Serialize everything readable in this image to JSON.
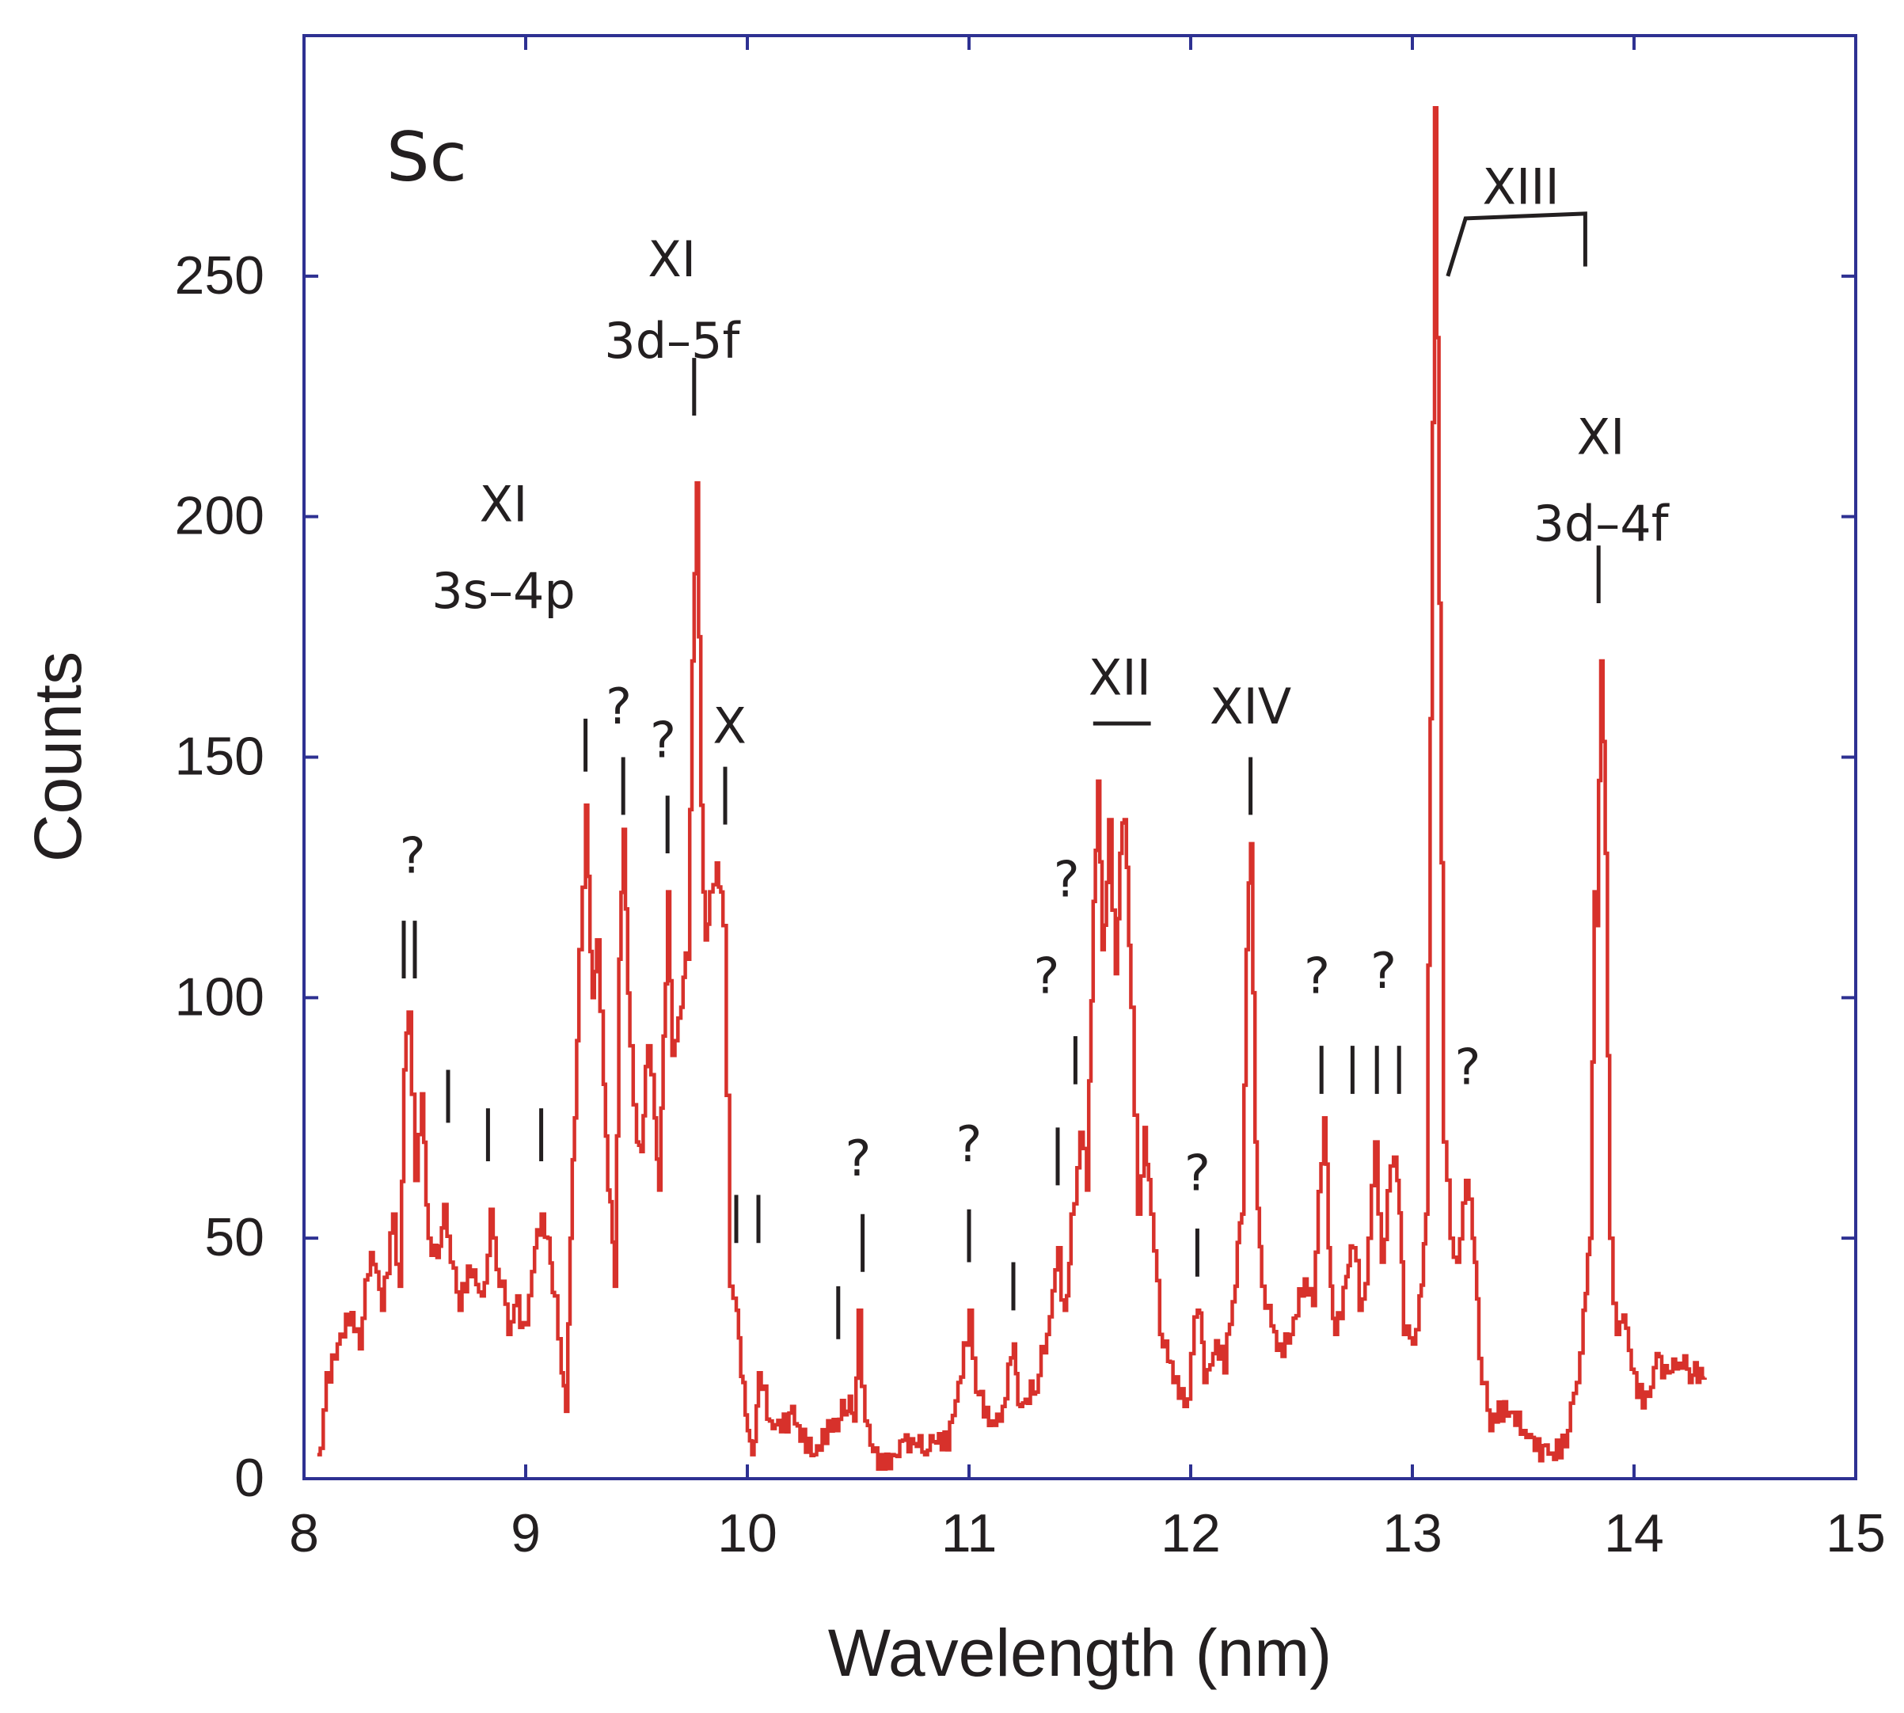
{
  "chart_data": {
    "type": "line",
    "title": "Sc",
    "xlabel": "Wavelength (nm)",
    "ylabel": "Counts",
    "xlim": [
      8,
      15
    ],
    "ylim": [
      0,
      300
    ],
    "xticks": [
      8,
      9,
      10,
      11,
      12,
      13,
      14,
      15
    ],
    "yticks": [
      0,
      50,
      100,
      150,
      200,
      250
    ],
    "grid": false,
    "line_color": "#d7312b",
    "axis_color": "#2e3192",
    "series": [
      {
        "name": "Sc spectrum",
        "anchors": [
          [
            8.06,
            5
          ],
          [
            8.1,
            22
          ],
          [
            8.15,
            28
          ],
          [
            8.2,
            32
          ],
          [
            8.25,
            27
          ],
          [
            8.3,
            47
          ],
          [
            8.35,
            35
          ],
          [
            8.4,
            55
          ],
          [
            8.43,
            40
          ],
          [
            8.45,
            85
          ],
          [
            8.47,
            97
          ],
          [
            8.5,
            62
          ],
          [
            8.53,
            80
          ],
          [
            8.56,
            50
          ],
          [
            8.6,
            46
          ],
          [
            8.63,
            57
          ],
          [
            8.66,
            45
          ],
          [
            8.7,
            35
          ],
          [
            8.75,
            42
          ],
          [
            8.8,
            38
          ],
          [
            8.84,
            56
          ],
          [
            8.88,
            40
          ],
          [
            8.92,
            30
          ],
          [
            8.96,
            38
          ],
          [
            9.0,
            32
          ],
          [
            9.04,
            48
          ],
          [
            9.07,
            55
          ],
          [
            9.1,
            50
          ],
          [
            9.13,
            38
          ],
          [
            9.16,
            22
          ],
          [
            9.18,
            14
          ],
          [
            9.2,
            50
          ],
          [
            9.22,
            75
          ],
          [
            9.24,
            110
          ],
          [
            9.27,
            140
          ],
          [
            9.3,
            100
          ],
          [
            9.32,
            112
          ],
          [
            9.35,
            82
          ],
          [
            9.37,
            60
          ],
          [
            9.4,
            40
          ],
          [
            9.42,
            108
          ],
          [
            9.44,
            135
          ],
          [
            9.47,
            90
          ],
          [
            9.5,
            70
          ],
          [
            9.52,
            68
          ],
          [
            9.55,
            90
          ],
          [
            9.58,
            75
          ],
          [
            9.6,
            60
          ],
          [
            9.62,
            92
          ],
          [
            9.64,
            122
          ],
          [
            9.66,
            88
          ],
          [
            9.7,
            98
          ],
          [
            9.73,
            108
          ],
          [
            9.75,
            170
          ],
          [
            9.77,
            207
          ],
          [
            9.79,
            140
          ],
          [
            9.81,
            112
          ],
          [
            9.83,
            122
          ],
          [
            9.86,
            128
          ],
          [
            9.89,
            115
          ],
          [
            9.92,
            40
          ],
          [
            9.95,
            35
          ],
          [
            9.98,
            20
          ],
          [
            10.0,
            10
          ],
          [
            10.02,
            5
          ],
          [
            10.05,
            22
          ],
          [
            10.1,
            12
          ],
          [
            10.2,
            15
          ],
          [
            10.3,
            5
          ],
          [
            10.4,
            10
          ],
          [
            10.45,
            14
          ],
          [
            10.48,
            12
          ],
          [
            10.5,
            35
          ],
          [
            10.53,
            12
          ],
          [
            10.6,
            5
          ],
          [
            10.7,
            8
          ],
          [
            10.8,
            5
          ],
          [
            10.9,
            6
          ],
          [
            10.95,
            20
          ],
          [
            11.0,
            35
          ],
          [
            11.03,
            18
          ],
          [
            11.1,
            12
          ],
          [
            11.15,
            15
          ],
          [
            11.2,
            28
          ],
          [
            11.23,
            15
          ],
          [
            11.3,
            18
          ],
          [
            11.35,
            30
          ],
          [
            11.4,
            48
          ],
          [
            11.43,
            35
          ],
          [
            11.46,
            55
          ],
          [
            11.5,
            72
          ],
          [
            11.53,
            60
          ],
          [
            11.56,
            120
          ],
          [
            11.58,
            145
          ],
          [
            11.6,
            110
          ],
          [
            11.63,
            137
          ],
          [
            11.66,
            105
          ],
          [
            11.68,
            130
          ],
          [
            11.7,
            137
          ],
          [
            11.73,
            98
          ],
          [
            11.76,
            55
          ],
          [
            11.79,
            73
          ],
          [
            11.82,
            55
          ],
          [
            11.86,
            30
          ],
          [
            11.92,
            20
          ],
          [
            11.97,
            15
          ],
          [
            12.0,
            26
          ],
          [
            12.03,
            35
          ],
          [
            12.06,
            20
          ],
          [
            12.1,
            26
          ],
          [
            12.15,
            22
          ],
          [
            12.2,
            40
          ],
          [
            12.23,
            55
          ],
          [
            12.25,
            110
          ],
          [
            12.27,
            132
          ],
          [
            12.29,
            70
          ],
          [
            12.32,
            40
          ],
          [
            12.35,
            36
          ],
          [
            12.4,
            28
          ],
          [
            12.45,
            30
          ],
          [
            12.5,
            38
          ],
          [
            12.55,
            36
          ],
          [
            12.6,
            75
          ],
          [
            12.62,
            48
          ],
          [
            12.65,
            30
          ],
          [
            12.7,
            42
          ],
          [
            12.73,
            48
          ],
          [
            12.76,
            35
          ],
          [
            12.8,
            50
          ],
          [
            12.83,
            70
          ],
          [
            12.86,
            45
          ],
          [
            12.9,
            65
          ],
          [
            12.93,
            62
          ],
          [
            12.96,
            30
          ],
          [
            13.0,
            28
          ],
          [
            13.03,
            38
          ],
          [
            13.06,
            55
          ],
          [
            13.08,
            158
          ],
          [
            13.1,
            285
          ],
          [
            13.12,
            182
          ],
          [
            13.14,
            70
          ],
          [
            13.17,
            50
          ],
          [
            13.2,
            45
          ],
          [
            13.24,
            62
          ],
          [
            13.27,
            50
          ],
          [
            13.3,
            25
          ],
          [
            13.35,
            10
          ],
          [
            13.4,
            12
          ],
          [
            13.5,
            10
          ],
          [
            13.6,
            7
          ],
          [
            13.65,
            8
          ],
          [
            13.7,
            10
          ],
          [
            13.74,
            20
          ],
          [
            13.77,
            35
          ],
          [
            13.8,
            50
          ],
          [
            13.82,
            122
          ],
          [
            13.83,
            115
          ],
          [
            13.85,
            170
          ],
          [
            13.87,
            130
          ],
          [
            13.89,
            50
          ],
          [
            13.92,
            30
          ],
          [
            13.95,
            34
          ],
          [
            14.0,
            22
          ],
          [
            14.05,
            18
          ],
          [
            14.1,
            26
          ],
          [
            14.15,
            22
          ],
          [
            14.2,
            24
          ],
          [
            14.25,
            20
          ],
          [
            14.32,
            21
          ]
        ]
      }
    ],
    "annotations": [
      {
        "text": "XI",
        "x": 8.9,
        "counts": 199,
        "id": "xi-3s4p-ion"
      },
      {
        "text": "3s–4p",
        "x": 8.9,
        "counts": 181,
        "id": "xi-3s4p-transition"
      },
      {
        "text": "XI",
        "x": 9.66,
        "counts": 250,
        "id": "xi-3d5f-ion"
      },
      {
        "text": "3d–5f",
        "x": 9.66,
        "counts": 233,
        "id": "xi-3d5f-transition"
      },
      {
        "text": "X",
        "x": 9.92,
        "counts": 153,
        "id": "x-ion"
      },
      {
        "text": "XII",
        "x": 11.68,
        "counts": 163,
        "id": "xii-ion"
      },
      {
        "text": "XIV",
        "x": 12.27,
        "counts": 157,
        "id": "xiv-ion"
      },
      {
        "text": "XIII",
        "x": 13.49,
        "counts": 265,
        "id": "xiii-ion"
      },
      {
        "text": "XI",
        "x": 13.85,
        "counts": 213,
        "id": "xi-3d4f-ion"
      },
      {
        "text": "3d–4f",
        "x": 13.85,
        "counts": 195,
        "id": "xi-3d4f-transition"
      },
      {
        "text": "?",
        "x": 8.49,
        "counts": 126,
        "id": "q-1"
      },
      {
        "text": "?",
        "x": 9.42,
        "counts": 157,
        "id": "q-2"
      },
      {
        "text": "?",
        "x": 9.62,
        "counts": 150,
        "id": "q-3"
      },
      {
        "text": "?",
        "x": 10.5,
        "counts": 63,
        "id": "q-4"
      },
      {
        "text": "?",
        "x": 11.0,
        "counts": 66,
        "id": "q-5"
      },
      {
        "text": "?",
        "x": 11.44,
        "counts": 121,
        "id": "q-6"
      },
      {
        "text": "?",
        "x": 11.35,
        "counts": 101,
        "id": "q-7"
      },
      {
        "text": "?",
        "x": 12.03,
        "counts": 60,
        "id": "q-8"
      },
      {
        "text": "?",
        "x": 12.57,
        "counts": 101,
        "id": "q-9"
      },
      {
        "text": "?",
        "x": 12.87,
        "counts": 102,
        "id": "q-10"
      },
      {
        "text": "?",
        "x": 13.25,
        "counts": 82,
        "id": "q-11"
      }
    ],
    "markers": [
      [
        8.45,
        104,
        116
      ],
      [
        8.5,
        104,
        116
      ],
      [
        8.65,
        74,
        85
      ],
      [
        8.83,
        66,
        77
      ],
      [
        9.07,
        66,
        77
      ],
      [
        9.27,
        147,
        158
      ],
      [
        9.44,
        138,
        150
      ],
      [
        9.64,
        130,
        142
      ],
      [
        9.76,
        221,
        233
      ],
      [
        9.9,
        136,
        148
      ],
      [
        9.95,
        49,
        59
      ],
      [
        10.05,
        49,
        59
      ],
      [
        10.41,
        29,
        40
      ],
      [
        10.52,
        43,
        55
      ],
      [
        11.0,
        45,
        56
      ],
      [
        11.2,
        35,
        45
      ],
      [
        11.4,
        61,
        73
      ],
      [
        11.48,
        82,
        92
      ],
      [
        12.03,
        42,
        52
      ],
      [
        12.27,
        138,
        150
      ],
      [
        12.59,
        80,
        90
      ],
      [
        12.73,
        80,
        90
      ],
      [
        12.84,
        80,
        90
      ],
      [
        12.94,
        80,
        90
      ],
      [
        13.84,
        182,
        194
      ]
    ],
    "bracket": {
      "start": 13.16,
      "start_low": 250,
      "corner": 13.24,
      "high": 262,
      "end": 13.78,
      "end_high": 263,
      "end_low": 252
    }
  }
}
